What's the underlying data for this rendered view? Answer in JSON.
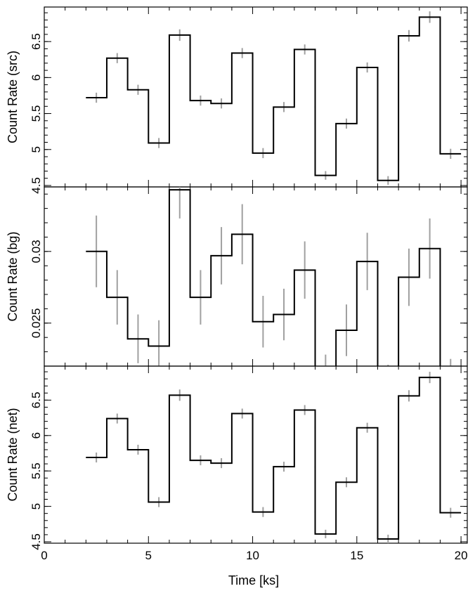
{
  "chart_data": [
    {
      "type": "line",
      "style": "step",
      "ylabel": "Count Rate (src)",
      "xlabel": "",
      "xlim": [
        0,
        20.3
      ],
      "ylim": [
        4.48,
        6.98
      ],
      "yticks": [
        4.5,
        5,
        5.5,
        6,
        6.5
      ],
      "ytick_labels": [
        "4.5",
        "5",
        "5.5",
        "6",
        "6.5"
      ],
      "x": [
        2.5,
        3.5,
        4.5,
        5.5,
        6.5,
        7.5,
        8.5,
        9.5,
        10.5,
        11.5,
        12.5,
        13.5,
        14.5,
        15.5,
        16.5,
        17.5,
        18.5,
        19.5
      ],
      "y": [
        5.72,
        6.27,
        5.83,
        5.09,
        6.59,
        5.68,
        5.64,
        6.34,
        4.95,
        5.59,
        6.39,
        4.64,
        5.36,
        6.14,
        4.57,
        6.58,
        6.84,
        4.94
      ],
      "yerr": [
        0.07,
        0.07,
        0.07,
        0.07,
        0.08,
        0.07,
        0.07,
        0.07,
        0.07,
        0.07,
        0.07,
        0.06,
        0.07,
        0.07,
        0.06,
        0.08,
        0.08,
        0.07
      ],
      "grid": false,
      "colors": {
        "step": "#000000",
        "errorbar": "#a0a0a0"
      }
    },
    {
      "type": "line",
      "style": "step",
      "ylabel": "Count Rate (bg)",
      "xlabel": "",
      "xlim": [
        0,
        20.3
      ],
      "ylim": [
        0.022,
        0.0345
      ],
      "yticks": [
        0.025,
        0.03
      ],
      "ytick_labels": [
        "0.025",
        "0.03"
      ],
      "x": [
        2.5,
        3.5,
        4.5,
        5.5,
        6.5,
        7.5,
        8.5,
        9.5,
        10.5,
        11.5,
        12.5,
        13.5,
        14.5,
        15.5,
        16.5,
        17.5,
        18.5,
        19.5
      ],
      "y": [
        0.03,
        0.0268,
        0.0239,
        0.0234,
        0.0343,
        0.0268,
        0.0297,
        0.0312,
        0.0251,
        0.0256,
        0.0287,
        0.0211,
        0.0245,
        0.0293,
        0.0205,
        0.0282,
        0.0302,
        0.0208
      ],
      "yerr": [
        0.0025,
        0.0019,
        0.0017,
        0.0018,
        0.002,
        0.0019,
        0.002,
        0.0021,
        0.0018,
        0.0018,
        0.002,
        0.0017,
        0.0018,
        0.002,
        0.0016,
        0.002,
        0.0021,
        0.0017
      ],
      "grid": false,
      "colors": {
        "step": "#000000",
        "errorbar": "#a0a0a0"
      }
    },
    {
      "type": "line",
      "style": "step",
      "ylabel": "Count Rate (net)",
      "xlabel": "Time [ks]",
      "xlim": [
        0,
        20.3
      ],
      "xticks": [
        0,
        5,
        10,
        15,
        20
      ],
      "xtick_labels": [
        "0",
        "5",
        "10",
        "15",
        "20"
      ],
      "ylim": [
        4.48,
        6.98
      ],
      "yticks": [
        4.5,
        5,
        5.5,
        6,
        6.5
      ],
      "ytick_labels": [
        "4.5",
        "5",
        "5.5",
        "6",
        "6.5"
      ],
      "x": [
        2.5,
        3.5,
        4.5,
        5.5,
        6.5,
        7.5,
        8.5,
        9.5,
        10.5,
        11.5,
        12.5,
        13.5,
        14.5,
        15.5,
        16.5,
        17.5,
        18.5,
        19.5
      ],
      "y": [
        5.69,
        6.24,
        5.8,
        5.06,
        6.57,
        5.65,
        5.61,
        6.31,
        4.92,
        5.56,
        6.36,
        4.61,
        5.34,
        6.11,
        4.54,
        6.56,
        6.82,
        4.91
      ],
      "yerr": [
        0.07,
        0.07,
        0.07,
        0.07,
        0.08,
        0.07,
        0.07,
        0.07,
        0.07,
        0.07,
        0.07,
        0.06,
        0.07,
        0.07,
        0.06,
        0.08,
        0.08,
        0.07
      ],
      "grid": false,
      "colors": {
        "step": "#000000",
        "errorbar": "#a0a0a0"
      }
    }
  ]
}
